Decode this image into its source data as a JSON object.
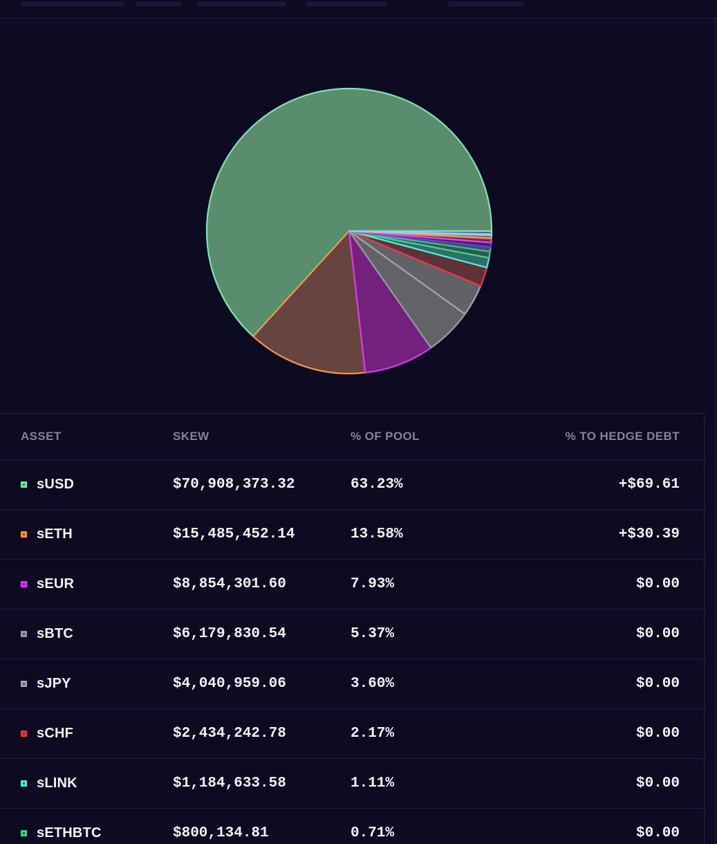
{
  "page": {
    "background": "#0d0b22",
    "divider_color": "#232248",
    "row_divider_color": "#1e1d3e",
    "header_text_color": "#84839c",
    "text_color": "#f4f4f6"
  },
  "chart_data": {
    "type": "pie",
    "title": "",
    "legend_position": "none",
    "start_angle_deg": 0,
    "direction": "counterclockwise",
    "units": "% of pool",
    "slices": [
      {
        "label": "sUSD",
        "value": 63.23,
        "fill": "#5a8c6e",
        "stroke": "#7de3b5"
      },
      {
        "label": "sETH",
        "value": 13.58,
        "fill": "#67443f",
        "stroke": "#f0934e"
      },
      {
        "label": "sEUR",
        "value": 7.93,
        "fill": "#74217d",
        "stroke": "#d43bec"
      },
      {
        "label": "sBTC",
        "value": 5.37,
        "fill": "#626268",
        "stroke": "#97979f"
      },
      {
        "label": "sJPY",
        "value": 3.6,
        "fill": "#616167",
        "stroke": "#a3a3ab"
      },
      {
        "label": "sCHF",
        "value": 2.17,
        "fill": "#613039",
        "stroke": "#e63944"
      },
      {
        "label": "sLINK",
        "value": 1.11,
        "fill": "#2e6e6b",
        "stroke": "#5fe6d5"
      },
      {
        "label": "sETHBTC",
        "value": 0.71,
        "fill": "#2a5c49",
        "stroke": "#4ecb8c"
      },
      {
        "label": "unlabeled-1",
        "value": 0.51,
        "fill": "#275a58",
        "stroke": "#3fb3a5"
      },
      {
        "label": "unlabeled-2",
        "value": 0.5,
        "fill": "#3a2a5e",
        "stroke": "#7436d9"
      },
      {
        "label": "unlabeled-3",
        "value": 0.4,
        "fill": "#5c2470",
        "stroke": "#d94ff0"
      },
      {
        "label": "unlabeled-4",
        "value": 0.12,
        "fill": "#5c2e35",
        "stroke": "#e8434b"
      },
      {
        "label": "unlabeled-5",
        "value": 0.3,
        "fill": "#6b4a3c",
        "stroke": "#f0a055"
      },
      {
        "label": "unlabeled-6",
        "value": 0.12,
        "fill": "#55555e",
        "stroke": "#c2c2cc"
      },
      {
        "label": "unlabeled-7",
        "value": 0.35,
        "fill": "#3f6a8f",
        "stroke": "#8fd0f2"
      }
    ]
  },
  "table": {
    "headers": [
      "ASSET",
      "SKEW",
      "% OF POOL",
      "% TO HEDGE DEBT"
    ],
    "rows": [
      {
        "asset": "sUSD",
        "skew": "$70,908,373.32",
        "pool_pct": "63.23%",
        "hedge": "+$69.61",
        "swatch_stroke": "#7de3b5",
        "swatch_fill": "#35795a"
      },
      {
        "asset": "sETH",
        "skew": "$15,485,452.14",
        "pool_pct": "13.58%",
        "hedge": "+$30.39",
        "swatch_stroke": "#f0934e",
        "swatch_fill": "#8a5226"
      },
      {
        "asset": "sEUR",
        "skew": "$8,854,301.60",
        "pool_pct": "7.93%",
        "hedge": "$0.00",
        "swatch_stroke": "#d43bec",
        "swatch_fill": "#7d1f8c"
      },
      {
        "asset": "sBTC",
        "skew": "$6,179,830.54",
        "pool_pct": "5.37%",
        "hedge": "$0.00",
        "swatch_stroke": "#97979f",
        "swatch_fill": "#55555e"
      },
      {
        "asset": "sJPY",
        "skew": "$4,040,959.06",
        "pool_pct": "3.60%",
        "hedge": "$0.00",
        "swatch_stroke": "#a3a3ab",
        "swatch_fill": "#55555e"
      },
      {
        "asset": "sCHF",
        "skew": "$2,434,242.78",
        "pool_pct": "2.17%",
        "hedge": "$0.00",
        "swatch_stroke": "#e63944",
        "swatch_fill": "#822831"
      },
      {
        "asset": "sLINK",
        "skew": "$1,184,633.58",
        "pool_pct": "1.11%",
        "hedge": "$0.00",
        "swatch_stroke": "#5fe6d5",
        "swatch_fill": "#1f6b63"
      },
      {
        "asset": "sETHBTC",
        "skew": "$800,134.81",
        "pool_pct": "0.71%",
        "hedge": "$0.00",
        "swatch_stroke": "#4ecb8c",
        "swatch_fill": "#23594a"
      }
    ]
  }
}
